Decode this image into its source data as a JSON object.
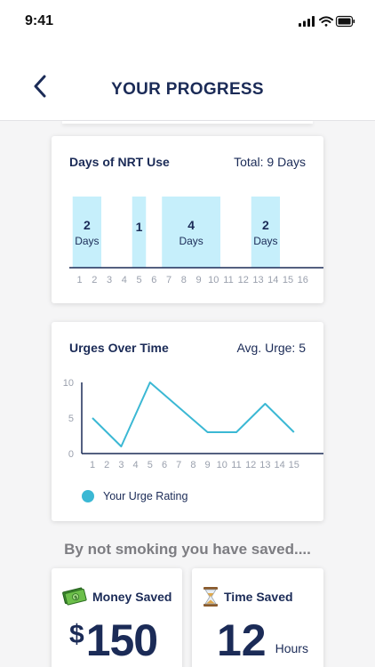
{
  "status_bar": {
    "time": "9:41",
    "icons": [
      "cellular-signal-icon",
      "wifi-icon",
      "battery-icon"
    ]
  },
  "header": {
    "title": "YOUR PROGRESS",
    "back_icon": "chevron-left-icon"
  },
  "nrt_card": {
    "title": "Days of NRT Use",
    "total": "Total: 9 Days",
    "chart_data": {
      "type": "bar",
      "x_ticks": [
        "1",
        "2",
        "3",
        "4",
        "5",
        "6",
        "7",
        "8",
        "9",
        "10",
        "11",
        "12",
        "13",
        "14",
        "15",
        "16"
      ],
      "bars": [
        {
          "start": 1,
          "end": 2,
          "value": "2",
          "unit": "Days"
        },
        {
          "start": 5,
          "end": 5,
          "value": "1",
          "unit": ""
        },
        {
          "start": 7,
          "end": 10,
          "value": "4",
          "unit": "Days"
        },
        {
          "start": 13,
          "end": 14,
          "value": "2",
          "unit": "Days"
        }
      ],
      "bar_color": "#c6effb"
    }
  },
  "urge_card": {
    "title": "Urges Over Time",
    "average": "Avg. Urge: 5",
    "chart_data": {
      "type": "line",
      "x": [
        1,
        2,
        3,
        4,
        5,
        6,
        7,
        8,
        9,
        10,
        11,
        12,
        13,
        14,
        15
      ],
      "x_ticks": [
        "1",
        "2",
        "3",
        "4",
        "5",
        "6",
        "7",
        "8",
        "9",
        "10",
        "11",
        "12",
        "13",
        "14",
        "15"
      ],
      "y_ticks": [
        "0",
        "5",
        "10"
      ],
      "ylim": [
        0,
        10
      ],
      "series": [
        {
          "name": "Your Urge Rating",
          "points": [
            [
              1,
              5
            ],
            [
              3,
              1
            ],
            [
              5,
              10
            ],
            [
              9,
              3
            ],
            [
              11,
              3
            ],
            [
              13,
              7
            ],
            [
              15,
              3
            ]
          ]
        }
      ],
      "line_color": "#3bb8d4"
    },
    "legend_label": "Your Urge Rating"
  },
  "saved": {
    "heading": "By not smoking you have saved....",
    "money": {
      "label": "Money Saved",
      "symbol": "$",
      "amount": "150",
      "icon": "money-bills-icon"
    },
    "time": {
      "label": "Time Saved",
      "amount": "12",
      "unit": "Hours",
      "icon": "hourglass-icon"
    }
  }
}
